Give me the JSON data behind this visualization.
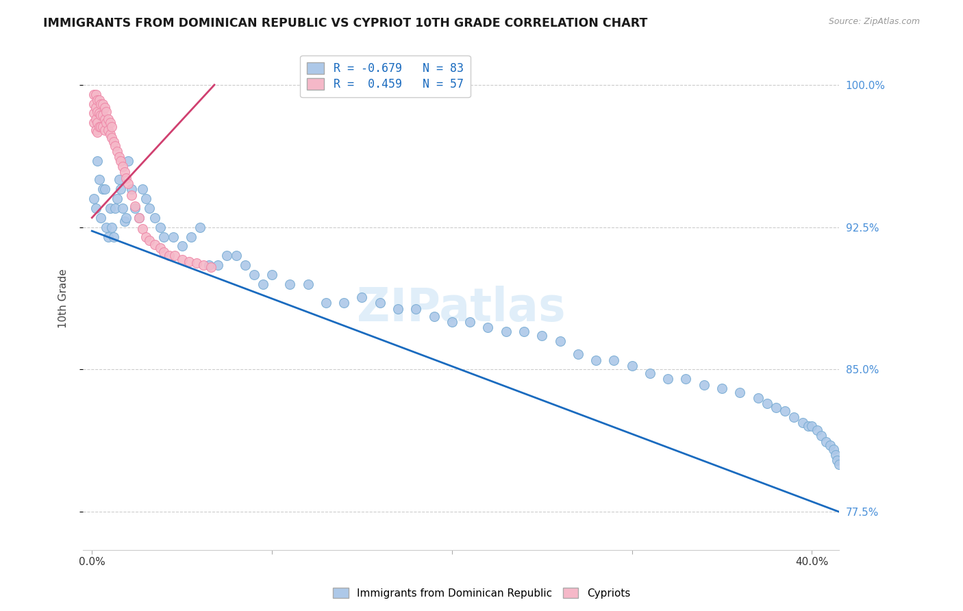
{
  "title": "IMMIGRANTS FROM DOMINICAN REPUBLIC VS CYPRIOT 10TH GRADE CORRELATION CHART",
  "source": "Source: ZipAtlas.com",
  "ylabel": "10th Grade",
  "y_ticks": [
    0.775,
    0.85,
    0.925,
    1.0
  ],
  "y_tick_labels": [
    "77.5%",
    "85.0%",
    "92.5%",
    "100.0%"
  ],
  "xlim": [
    -0.005,
    0.415
  ],
  "ylim": [
    0.755,
    1.02
  ],
  "blue_R": -0.679,
  "blue_N": 83,
  "pink_R": 0.459,
  "pink_N": 57,
  "blue_color": "#adc8e8",
  "blue_edge": "#7aadd4",
  "pink_color": "#f5b8c8",
  "pink_edge": "#ee88a8",
  "line_blue": "#1a6bbf",
  "line_pink": "#d04070",
  "legend_blue_face": "#adc8e8",
  "legend_pink_face": "#f5b8c8",
  "blue_x": [
    0.001,
    0.002,
    0.003,
    0.004,
    0.005,
    0.006,
    0.007,
    0.008,
    0.009,
    0.01,
    0.011,
    0.012,
    0.013,
    0.014,
    0.015,
    0.016,
    0.017,
    0.018,
    0.019,
    0.02,
    0.022,
    0.024,
    0.026,
    0.028,
    0.03,
    0.032,
    0.035,
    0.038,
    0.04,
    0.045,
    0.05,
    0.055,
    0.06,
    0.065,
    0.07,
    0.075,
    0.08,
    0.085,
    0.09,
    0.095,
    0.1,
    0.11,
    0.12,
    0.13,
    0.14,
    0.15,
    0.16,
    0.17,
    0.18,
    0.19,
    0.2,
    0.21,
    0.22,
    0.23,
    0.24,
    0.25,
    0.26,
    0.27,
    0.28,
    0.29,
    0.3,
    0.31,
    0.32,
    0.33,
    0.34,
    0.35,
    0.36,
    0.37,
    0.375,
    0.38,
    0.385,
    0.39,
    0.395,
    0.398,
    0.4,
    0.403,
    0.405,
    0.408,
    0.41,
    0.412,
    0.413,
    0.414,
    0.415
  ],
  "blue_y": [
    0.94,
    0.935,
    0.96,
    0.95,
    0.93,
    0.945,
    0.945,
    0.925,
    0.92,
    0.935,
    0.925,
    0.92,
    0.935,
    0.94,
    0.95,
    0.945,
    0.935,
    0.928,
    0.93,
    0.96,
    0.945,
    0.935,
    0.93,
    0.945,
    0.94,
    0.935,
    0.93,
    0.925,
    0.92,
    0.92,
    0.915,
    0.92,
    0.925,
    0.905,
    0.905,
    0.91,
    0.91,
    0.905,
    0.9,
    0.895,
    0.9,
    0.895,
    0.895,
    0.885,
    0.885,
    0.888,
    0.885,
    0.882,
    0.882,
    0.878,
    0.875,
    0.875,
    0.872,
    0.87,
    0.87,
    0.868,
    0.865,
    0.858,
    0.855,
    0.855,
    0.852,
    0.848,
    0.845,
    0.845,
    0.842,
    0.84,
    0.838,
    0.835,
    0.832,
    0.83,
    0.828,
    0.825,
    0.822,
    0.82,
    0.82,
    0.818,
    0.815,
    0.812,
    0.81,
    0.808,
    0.805,
    0.802,
    0.8
  ],
  "pink_x": [
    0.001,
    0.001,
    0.001,
    0.001,
    0.002,
    0.002,
    0.002,
    0.002,
    0.003,
    0.003,
    0.003,
    0.003,
    0.004,
    0.004,
    0.004,
    0.005,
    0.005,
    0.005,
    0.006,
    0.006,
    0.006,
    0.007,
    0.007,
    0.007,
    0.008,
    0.008,
    0.009,
    0.009,
    0.01,
    0.01,
    0.011,
    0.011,
    0.012,
    0.013,
    0.014,
    0.015,
    0.016,
    0.017,
    0.018,
    0.019,
    0.02,
    0.022,
    0.024,
    0.026,
    0.028,
    0.03,
    0.032,
    0.035,
    0.038,
    0.04,
    0.043,
    0.046,
    0.05,
    0.054,
    0.058,
    0.062,
    0.066
  ],
  "pink_y": [
    0.995,
    0.99,
    0.985,
    0.98,
    0.995,
    0.988,
    0.982,
    0.976,
    0.992,
    0.986,
    0.98,
    0.975,
    0.992,
    0.985,
    0.978,
    0.99,
    0.984,
    0.978,
    0.99,
    0.984,
    0.978,
    0.988,
    0.982,
    0.976,
    0.986,
    0.98,
    0.982,
    0.976,
    0.98,
    0.974,
    0.978,
    0.972,
    0.97,
    0.968,
    0.965,
    0.962,
    0.96,
    0.957,
    0.954,
    0.951,
    0.948,
    0.942,
    0.936,
    0.93,
    0.924,
    0.92,
    0.918,
    0.916,
    0.914,
    0.912,
    0.91,
    0.91,
    0.908,
    0.907,
    0.906,
    0.905,
    0.904
  ],
  "blue_line_x": [
    0.0,
    0.415
  ],
  "blue_line_y": [
    0.923,
    0.775
  ],
  "pink_line_x": [
    0.0,
    0.068
  ],
  "pink_line_y": [
    0.93,
    1.0
  ],
  "watermark": "ZIPatlas",
  "grid_color": "#cccccc",
  "bg_color": "#ffffff",
  "marker_size": 100
}
